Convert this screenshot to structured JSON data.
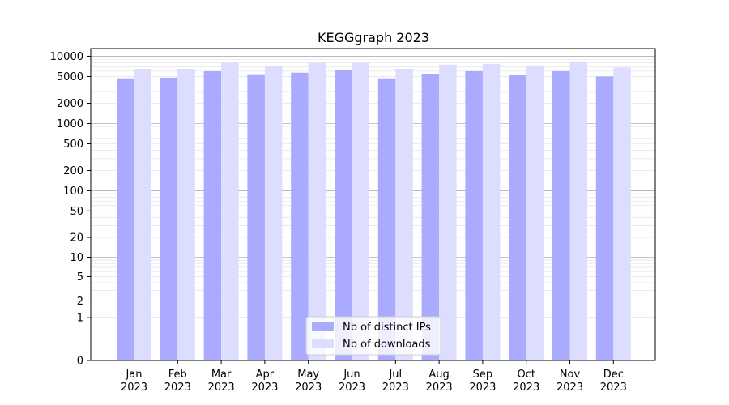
{
  "chart_data": {
    "type": "bar",
    "title": "KEGGgraph 2023",
    "xlabel": "",
    "ylabel": "",
    "y_scale": "custom log-like (0 at baseline, then log-spaced from 1 to 10000)",
    "ylim": [
      0,
      13000
    ],
    "grid": "horizontal minor/major lines",
    "legend_position": "bottom-center",
    "categories": [
      [
        "Jan",
        "2023"
      ],
      [
        "Feb",
        "2023"
      ],
      [
        "Mar",
        "2023"
      ],
      [
        "Apr",
        "2023"
      ],
      [
        "May",
        "2023"
      ],
      [
        "Jun",
        "2023"
      ],
      [
        "Jul",
        "2023"
      ],
      [
        "Aug",
        "2023"
      ],
      [
        "Sep",
        "2023"
      ],
      [
        "Oct",
        "2023"
      ],
      [
        "Nov",
        "2023"
      ],
      [
        "Dec",
        "2023"
      ]
    ],
    "y_ticks": [
      0,
      1,
      2,
      5,
      10,
      20,
      50,
      100,
      200,
      500,
      1000,
      2000,
      5000,
      10000
    ],
    "series": [
      {
        "name": "Nb of distinct IPs",
        "color": "#aaaaff",
        "values": [
          4700,
          4800,
          6000,
          5400,
          5700,
          6200,
          4700,
          5500,
          6000,
          5300,
          6000,
          5000
        ]
      },
      {
        "name": "Nb of downloads",
        "color": "#ddddff",
        "values": [
          6500,
          6500,
          8000,
          7200,
          8000,
          8000,
          6500,
          7500,
          7700,
          7300,
          8400,
          6800
        ]
      }
    ]
  }
}
